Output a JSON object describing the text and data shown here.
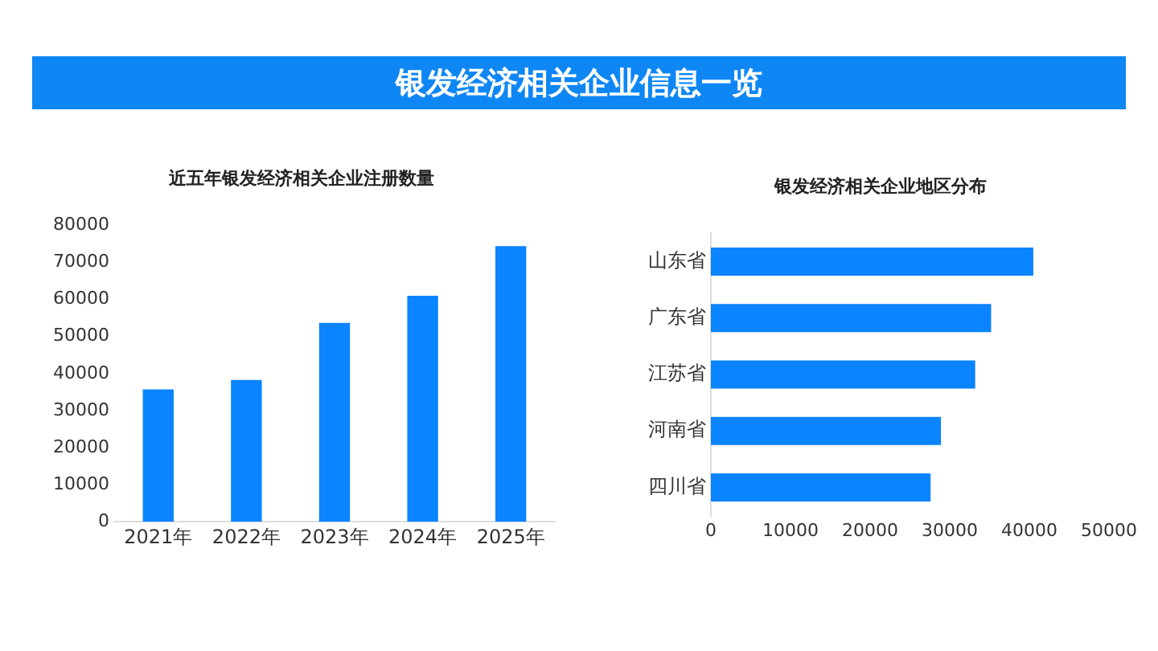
{
  "chart_data": [
    {
      "type": "other",
      "title": "银发经济相关企业信息一览",
      "color": "#0e87f5"
    },
    {
      "type": "bar",
      "title": "近五年银发经济相关企业注册数量",
      "categories": [
        "2021年",
        "2022年",
        "2023年",
        "2024年",
        "2025年"
      ],
      "values": [
        35700,
        38300,
        53700,
        61000,
        74400
      ],
      "color": "#0a84ff",
      "ylim": [
        0,
        80000
      ],
      "yticks": [
        0,
        10000,
        20000,
        30000,
        40000,
        50000,
        60000,
        70000,
        80000
      ],
      "grid": false,
      "legend": false
    },
    {
      "type": "bar",
      "orientation": "horizontal",
      "title": "银发经济相关企业地区分布",
      "categories": [
        "山东省",
        "广东省",
        "江苏省",
        "河南省",
        "四川省"
      ],
      "values": [
        40500,
        35200,
        33200,
        28900,
        27600
      ],
      "color": "#0a84ff",
      "xlim": [
        0,
        50000
      ],
      "xticks": [
        0,
        10000,
        20000,
        30000,
        40000,
        50000
      ],
      "grid": false,
      "legend": false
    }
  ]
}
